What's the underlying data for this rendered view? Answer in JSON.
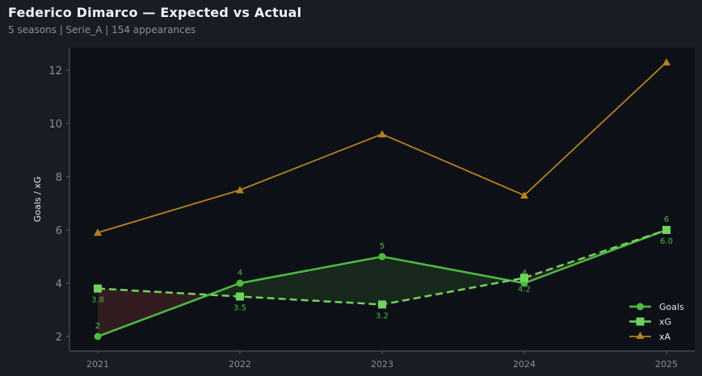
{
  "header": {
    "title": "Federico Dimarco — Expected vs Actual",
    "subtitle": "5 seasons | Serie_A | 154 appearances"
  },
  "colors": {
    "background": "#181c24",
    "plot_background": "#0d1017",
    "goals": "#4cbb3f",
    "xg": "#6fd35e",
    "xa": "#b5821f",
    "under_fill": "#3a1e22",
    "over_fill": "#1b2d1d",
    "axis": "#5a5f68",
    "tick_text": "#8a909a"
  },
  "chart_data": {
    "type": "line",
    "title": "Federico Dimarco — Expected vs Actual",
    "subtitle": "5 seasons | Serie_A | 154 appearances",
    "xlabel": "",
    "ylabel": "Goals / xG",
    "categories": [
      "2021",
      "2022",
      "2023",
      "2024",
      "2025"
    ],
    "y_ticks": [
      2,
      4,
      6,
      8,
      10,
      12
    ],
    "ylim": [
      1.5,
      12.8
    ],
    "grid": false,
    "legend_position": "lower right",
    "series": [
      {
        "name": "Goals",
        "values": [
          2,
          4,
          5,
          4,
          6
        ],
        "marker": "circle",
        "style": "solid",
        "labels": [
          "2",
          "4",
          "5",
          "4",
          "6"
        ]
      },
      {
        "name": "xG",
        "values": [
          3.8,
          3.5,
          3.2,
          4.2,
          6.0
        ],
        "marker": "square",
        "style": "dashed",
        "labels": [
          "3.8",
          "3.5",
          "3.2",
          "4.2",
          "6.0"
        ]
      },
      {
        "name": "xA",
        "values": [
          5.9,
          7.5,
          9.6,
          7.3,
          12.3
        ],
        "marker": "triangle",
        "style": "solid"
      }
    ],
    "annotations": "Shaded region between Goals and xG: red where Goals < xG, green where Goals > xG"
  },
  "legend": {
    "items": [
      "Goals",
      "xG",
      "xA"
    ]
  }
}
